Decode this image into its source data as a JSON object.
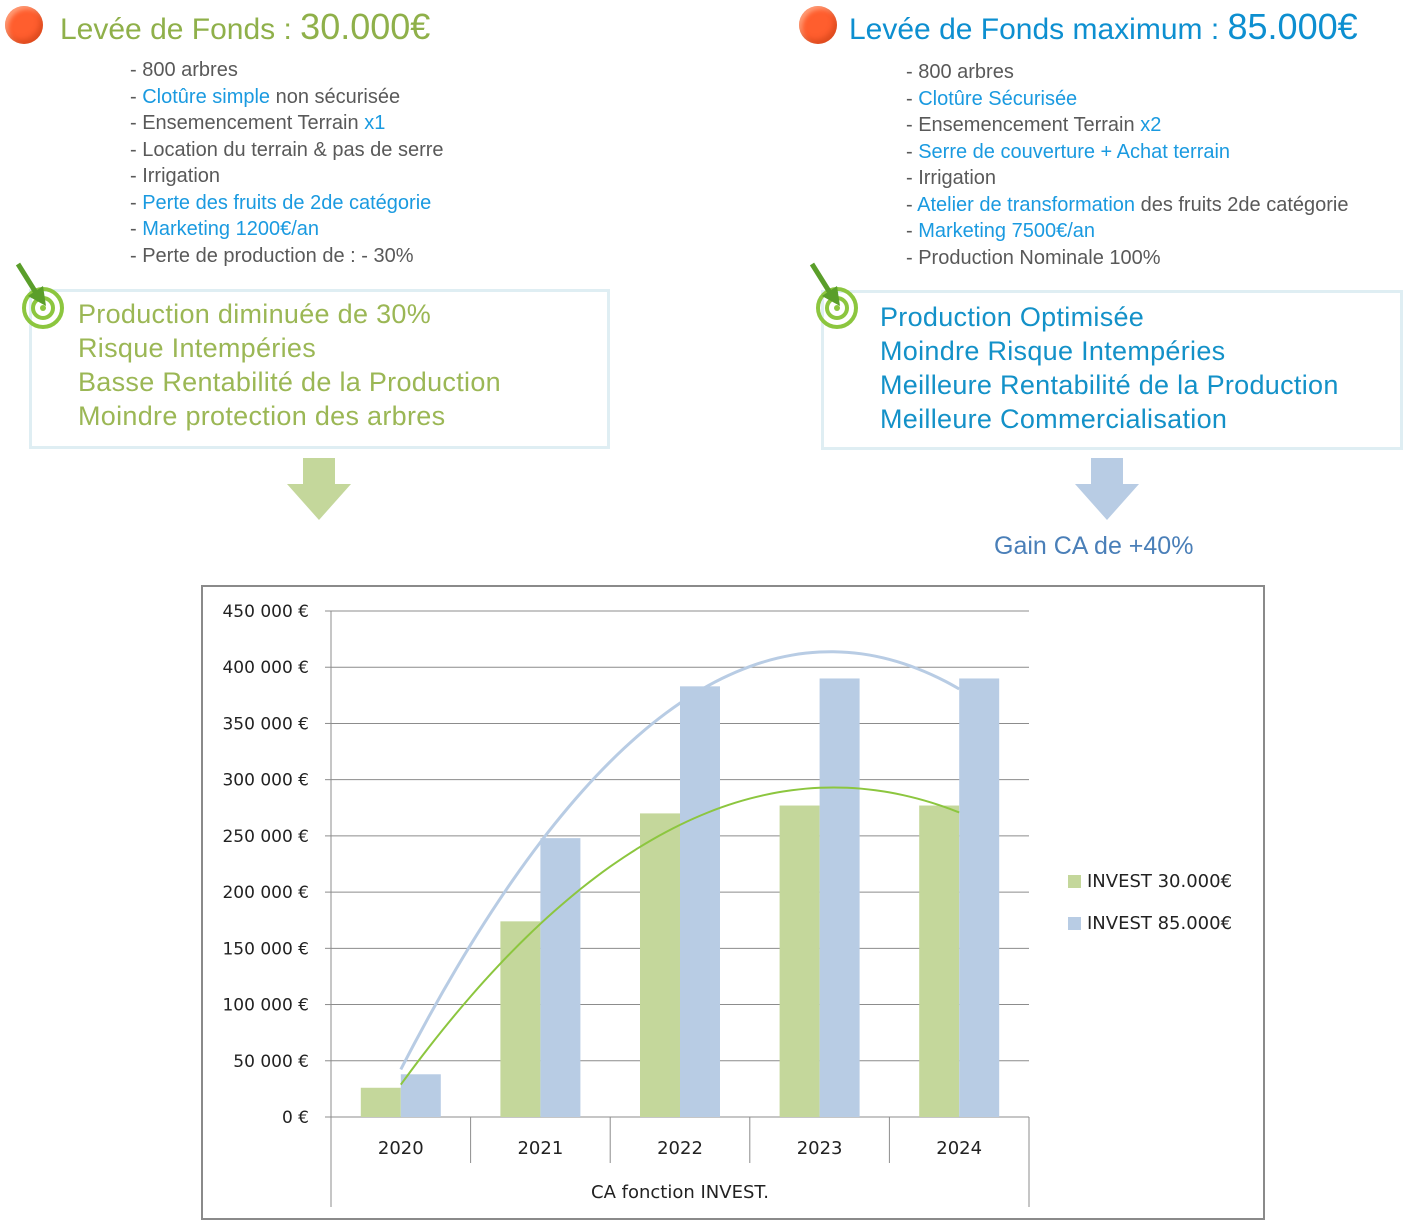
{
  "left": {
    "title_prefix": "Levée de Fonds : ",
    "title_amount": "30.000€",
    "items": [
      {
        "parts": [
          {
            "t": "- 800 arbres",
            "hl": false
          }
        ]
      },
      {
        "parts": [
          {
            "t": "- ",
            "hl": false
          },
          {
            "t": "Clotûre simple",
            "hl": true
          },
          {
            "t": " non sécurisée",
            "hl": false
          }
        ]
      },
      {
        "parts": [
          {
            "t": "- Ensemencement Terrain ",
            "hl": false
          },
          {
            "t": "x1",
            "hl": true
          }
        ]
      },
      {
        "parts": [
          {
            "t": "- Location du terrain & pas de serre",
            "hl": false
          }
        ]
      },
      {
        "parts": [
          {
            "t": "- Irrigation",
            "hl": false
          }
        ]
      },
      {
        "parts": [
          {
            "t": "- ",
            "hl": false
          },
          {
            "t": "Perte des fruits de 2de catégorie",
            "hl": true
          }
        ]
      },
      {
        "parts": [
          {
            "t": "- ",
            "hl": false
          },
          {
            "t": "Marketing 1200€/an",
            "hl": true
          }
        ]
      },
      {
        "parts": [
          {
            "t": "- Perte de production de : - 30%",
            "hl": false
          }
        ]
      }
    ],
    "outcomes": [
      "Production diminuée de 30%",
      "Risque Intempéries",
      "Basse Rentabilité de la Production",
      "Moindre protection des arbres"
    ]
  },
  "right": {
    "title_prefix": "Levée de Fonds maximum : ",
    "title_amount": "85.000€",
    "items": [
      {
        "parts": [
          {
            "t": "- 800 arbres",
            "hl": false
          }
        ]
      },
      {
        "parts": [
          {
            "t": "- ",
            "hl": false
          },
          {
            "t": "Clotûre Sécurisée",
            "hl": true
          }
        ]
      },
      {
        "parts": [
          {
            "t": "- Ensemencement Terrain ",
            "hl": false
          },
          {
            "t": "x2",
            "hl": true
          }
        ]
      },
      {
        "parts": [
          {
            "t": "- ",
            "hl": false
          },
          {
            "t": "Serre de couverture + Achat terrain",
            "hl": true
          }
        ]
      },
      {
        "parts": [
          {
            "t": "- Irrigation",
            "hl": false
          }
        ]
      },
      {
        "parts": [
          {
            "t": "- ",
            "hl": false
          },
          {
            "t": "Atelier de transformation",
            "hl": true
          },
          {
            "t": " des fruits 2de catégorie",
            "hl": false
          }
        ]
      },
      {
        "parts": [
          {
            "t": "- ",
            "hl": false
          },
          {
            "t": "Marketing 7500€/an",
            "hl": true
          }
        ]
      },
      {
        "parts": [
          {
            "t": "- Production Nominale 100%",
            "hl": false
          }
        ]
      }
    ],
    "outcomes": [
      "Production Optimisée",
      "Moindre Risque Intempéries",
      "Meilleure Rentabilité de la Production",
      "Meilleure Commercialisation"
    ],
    "gain": "Gain CA de +40%"
  },
  "icons": {
    "bullet": "orange-circle-icon",
    "target": "target-arrow-icon",
    "arrow_left": "down-arrow-icon",
    "arrow_right": "down-arrow-icon"
  },
  "colors": {
    "green_title": "#8fb04a",
    "blue_title": "#0d8fd0",
    "bullet": "#ff5e2e",
    "series_30k": "#c4d79b",
    "series_85k": "#b8cce4",
    "trend_30k": "#8cc63f",
    "trend_85k": "#b8cce4"
  },
  "chart_data": {
    "type": "bar",
    "title": "",
    "xlabel": "CA fonction INVEST.",
    "ylabel": "",
    "categories": [
      "2020",
      "2021",
      "2022",
      "2023",
      "2024"
    ],
    "ylim": [
      0,
      450000
    ],
    "yticks": [
      "450 000 €",
      "400 000 €",
      "350 000 €",
      "300 000 €",
      "250 000 €",
      "200 000 €",
      "150 000 €",
      "100 000 €",
      "50 000 €",
      "0 €"
    ],
    "series": [
      {
        "name": "INVEST  30.000€",
        "values": [
          26000,
          174000,
          270000,
          277000,
          277000
        ]
      },
      {
        "name": "INVEST  85.000€",
        "values": [
          38000,
          248000,
          383000,
          390000,
          390000
        ]
      }
    ],
    "trendlines": true,
    "grid": true,
    "legend": "right"
  }
}
